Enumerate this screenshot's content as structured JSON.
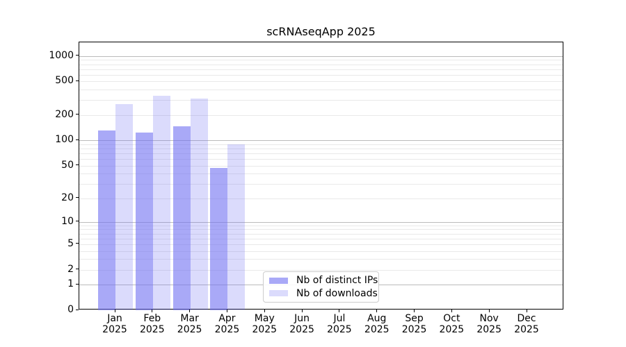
{
  "title": "scRNAseqApp 2025",
  "chart_data": {
    "type": "bar",
    "title": "scRNAseqApp 2025",
    "categories": [
      "Jan 2025",
      "Feb 2025",
      "Mar 2025",
      "Apr 2025",
      "May 2025",
      "Jun 2025",
      "Jul 2025",
      "Aug 2025",
      "Sep 2025",
      "Oct 2025",
      "Nov 2025",
      "Dec 2025"
    ],
    "series": [
      {
        "name": "Nb of distinct IPs",
        "color": "#a9a9f6",
        "fill": "rgba(112,112,242,0.6)",
        "values": [
          132,
          125,
          146,
          47,
          0,
          0,
          0,
          0,
          0,
          0,
          0,
          0
        ]
      },
      {
        "name": "Nb of downloads",
        "color": "#dbdbf9",
        "fill": "rgba(112,112,242,0.25)",
        "values": [
          270,
          340,
          312,
          89,
          0,
          0,
          0,
          0,
          0,
          0,
          0,
          0
        ]
      }
    ],
    "xlabel": "",
    "ylabel": "",
    "axis": {
      "yscale": "log1p",
      "yticks": [
        0,
        1,
        2,
        5,
        10,
        20,
        50,
        100,
        200,
        500,
        1000
      ],
      "ylim": [
        0,
        1450
      ],
      "grid": "horizontal major and minor",
      "grid_major_color": "#bbbbbb",
      "grid_minor_color": "#e9e9e9"
    },
    "legend_position": "inside bottom-center"
  }
}
